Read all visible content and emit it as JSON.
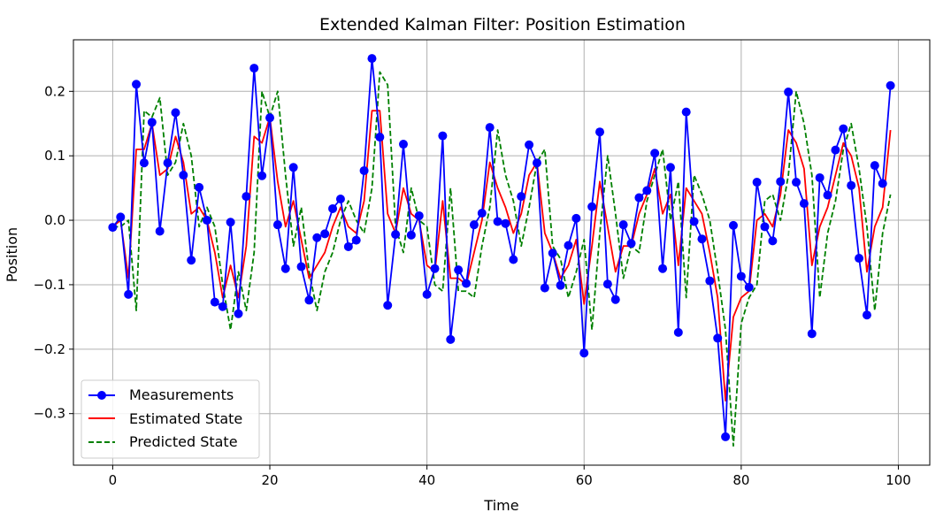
{
  "chart_data": {
    "type": "line",
    "title": "Extended Kalman Filter: Position Estimation",
    "xlabel": "Time",
    "ylabel": "Position",
    "xlim": [
      -5,
      104
    ],
    "ylim": [
      -0.38,
      0.28
    ],
    "xticks": [
      0,
      20,
      40,
      60,
      80,
      100
    ],
    "xtick_labels": [
      "0",
      "20",
      "40",
      "60",
      "80",
      "100"
    ],
    "yticks": [
      -0.3,
      -0.2,
      -0.1,
      0.0,
      0.1,
      0.2
    ],
    "ytick_labels": [
      "−0.3",
      "−0.2",
      "−0.1",
      "0.0",
      "0.1",
      "0.2"
    ],
    "grid": true,
    "legend_position": "lower-left",
    "x": [
      0,
      1,
      2,
      3,
      4,
      5,
      6,
      7,
      8,
      9,
      10,
      11,
      12,
      13,
      14,
      15,
      16,
      17,
      18,
      19,
      20,
      21,
      22,
      23,
      24,
      25,
      26,
      27,
      28,
      29,
      30,
      31,
      32,
      33,
      34,
      35,
      36,
      37,
      38,
      39,
      40,
      41,
      42,
      43,
      44,
      45,
      46,
      47,
      48,
      49,
      50,
      51,
      52,
      53,
      54,
      55,
      56,
      57,
      58,
      59,
      60,
      61,
      62,
      63,
      64,
      65,
      66,
      67,
      68,
      69,
      70,
      71,
      72,
      73,
      74,
      75,
      76,
      77,
      78,
      79,
      80,
      81,
      82,
      83,
      84,
      85,
      86,
      87,
      88,
      89,
      90,
      91,
      92,
      93,
      94,
      95,
      96,
      97,
      98,
      99
    ],
    "series": [
      {
        "name": "Measurements",
        "color": "#0000ff",
        "style": "solid-with-markers",
        "values": [
          -0.011,
          0.005,
          -0.115,
          0.211,
          0.089,
          0.152,
          -0.017,
          0.089,
          0.167,
          0.07,
          -0.062,
          0.051,
          0.0,
          -0.127,
          -0.134,
          -0.003,
          -0.145,
          0.037,
          0.236,
          0.069,
          0.159,
          -0.007,
          -0.075,
          0.082,
          -0.072,
          -0.124,
          -0.027,
          -0.021,
          0.018,
          0.033,
          -0.041,
          -0.031,
          0.077,
          0.251,
          0.129,
          -0.132,
          -0.022,
          0.118,
          -0.023,
          0.007,
          -0.115,
          -0.075,
          0.131,
          -0.185,
          -0.077,
          -0.098,
          -0.007,
          0.011,
          0.144,
          -0.002,
          -0.005,
          -0.061,
          0.037,
          0.117,
          0.089,
          -0.105,
          -0.051,
          -0.101,
          -0.039,
          0.003,
          -0.206,
          0.021,
          0.137,
          -0.099,
          -0.123,
          -0.007,
          -0.036,
          0.035,
          0.046,
          0.104,
          -0.075,
          0.082,
          -0.174,
          0.168,
          -0.002,
          -0.029,
          -0.094,
          -0.183,
          -0.336,
          -0.008,
          -0.087,
          -0.104,
          0.059,
          -0.01,
          -0.032,
          0.06,
          0.199,
          0.059,
          0.026,
          -0.176,
          0.066,
          0.039,
          0.109,
          0.142,
          0.054,
          -0.059,
          -0.147,
          0.085,
          0.057,
          0.209
        ]
      },
      {
        "name": "Estimated State",
        "color": "#ff0000",
        "style": "solid",
        "values": [
          -0.01,
          0.0,
          -0.09,
          0.11,
          0.11,
          0.15,
          0.07,
          0.08,
          0.13,
          0.09,
          0.01,
          0.02,
          0.0,
          -0.05,
          -0.12,
          -0.07,
          -0.12,
          -0.04,
          0.13,
          0.12,
          0.16,
          0.06,
          -0.01,
          0.03,
          -0.03,
          -0.09,
          -0.07,
          -0.05,
          -0.01,
          0.02,
          -0.01,
          -0.02,
          0.03,
          0.17,
          0.17,
          0.01,
          -0.02,
          0.05,
          0.01,
          -0.0,
          -0.07,
          -0.08,
          0.03,
          -0.09,
          -0.09,
          -0.1,
          -0.05,
          0.0,
          0.09,
          0.05,
          0.02,
          -0.02,
          0.01,
          0.07,
          0.09,
          -0.02,
          -0.05,
          -0.09,
          -0.07,
          -0.03,
          -0.13,
          -0.04,
          0.06,
          -0.01,
          -0.08,
          -0.04,
          -0.04,
          0.01,
          0.04,
          0.08,
          0.01,
          0.04,
          -0.07,
          0.05,
          0.03,
          0.01,
          -0.05,
          -0.12,
          -0.28,
          -0.15,
          -0.12,
          -0.11,
          0.0,
          0.01,
          -0.01,
          0.04,
          0.14,
          0.12,
          0.08,
          -0.07,
          -0.01,
          0.02,
          0.07,
          0.12,
          0.1,
          0.05,
          -0.08,
          -0.01,
          0.02,
          0.14
        ]
      },
      {
        "name": "Predicted State",
        "color": "#008000",
        "style": "dashed",
        "values": [
          -0.01,
          -0.01,
          0.0,
          -0.14,
          0.17,
          0.16,
          0.19,
          0.07,
          0.09,
          0.15,
          0.1,
          -0.01,
          0.02,
          -0.01,
          -0.1,
          -0.17,
          -0.08,
          -0.14,
          -0.05,
          0.2,
          0.16,
          0.2,
          0.07,
          -0.04,
          0.02,
          -0.08,
          -0.14,
          -0.08,
          -0.05,
          0.0,
          0.03,
          0.0,
          -0.02,
          0.05,
          0.23,
          0.21,
          -0.01,
          -0.05,
          0.05,
          0.0,
          -0.01,
          -0.1,
          -0.11,
          0.05,
          -0.11,
          -0.11,
          -0.12,
          -0.04,
          0.02,
          0.14,
          0.07,
          0.03,
          -0.04,
          0.02,
          0.09,
          0.11,
          -0.04,
          -0.06,
          -0.12,
          -0.08,
          -0.03,
          -0.17,
          -0.02,
          0.1,
          0.01,
          -0.09,
          -0.04,
          -0.05,
          0.03,
          0.07,
          0.11,
          0.0,
          0.06,
          -0.12,
          0.07,
          0.04,
          0.0,
          -0.08,
          -0.17,
          -0.35,
          -0.16,
          -0.12,
          -0.1,
          0.03,
          0.04,
          0.0,
          0.07,
          0.2,
          0.15,
          0.07,
          -0.12,
          -0.02,
          0.03,
          0.11,
          0.15,
          0.08,
          -0.01,
          -0.14,
          -0.02,
          0.04
        ]
      }
    ]
  }
}
